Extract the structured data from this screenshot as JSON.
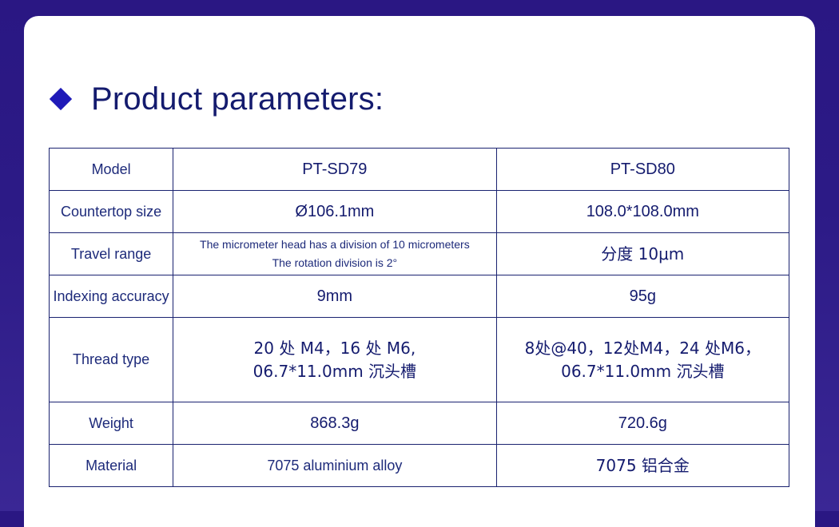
{
  "heading": {
    "title": "Product parameters:",
    "icon": "diamond-icon",
    "accent_color": "#1f1ab8"
  },
  "table": {
    "header": {
      "label": "Model",
      "col1": "PT-SD79",
      "col2": "PT-SD80"
    },
    "rows": [
      {
        "label": "Countertop size",
        "col1": [
          "Ø106.1mm"
        ],
        "col2": [
          "108.0*108.0mm"
        ]
      },
      {
        "label": "Travel range",
        "col1": [
          "The micrometer head has a division of 10 micrometers",
          "The rotation division is 2°"
        ],
        "col2": [
          "分度 10μm"
        ]
      },
      {
        "label": "Indexing accuracy",
        "col1": [
          "9mm"
        ],
        "col2": [
          "95g"
        ]
      },
      {
        "label": "Thread type",
        "col1": [
          "20 处 M4，16 处 M6,",
          "06.7*11.0mm 沉头槽"
        ],
        "col2": [
          "8处@40，12处M4，24 处M6，",
          "06.7*11.0mm 沉头槽"
        ]
      },
      {
        "label": "Weight",
        "col1": [
          "868.3g"
        ],
        "col2": [
          "720.6g"
        ]
      },
      {
        "label": "Material",
        "col1": [
          "7075 aluminium alloy"
        ],
        "col2": [
          "7075 铝合金"
        ]
      }
    ]
  }
}
